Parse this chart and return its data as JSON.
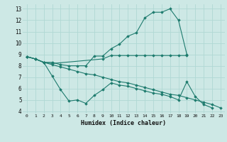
{
  "xlabel": "Humidex (Indice chaleur)",
  "ylabel": "",
  "bg_color": "#cde8e5",
  "grid_color": "#b0d8d4",
  "line_color": "#1e7b6e",
  "xlim": [
    -0.5,
    23.5
  ],
  "ylim": [
    3.8,
    13.4
  ],
  "xticks": [
    0,
    1,
    2,
    3,
    4,
    5,
    6,
    7,
    8,
    9,
    10,
    11,
    12,
    13,
    14,
    15,
    16,
    17,
    18,
    19,
    20,
    21,
    22,
    23
  ],
  "yticks": [
    4,
    5,
    6,
    7,
    8,
    9,
    10,
    11,
    12,
    13
  ],
  "series": [
    {
      "x": [
        0,
        1,
        2,
        3,
        4,
        5,
        6,
        7,
        8,
        9,
        10,
        11,
        12,
        13,
        14,
        15,
        16,
        17,
        18,
        19
      ],
      "y": [
        8.8,
        8.6,
        8.3,
        8.3,
        8.1,
        8.0,
        8.0,
        8.0,
        8.85,
        8.85,
        9.5,
        9.9,
        10.6,
        10.9,
        12.2,
        12.7,
        12.7,
        13.0,
        12.0,
        9.0
      ]
    },
    {
      "x": [
        0,
        1,
        2,
        3,
        9,
        10,
        11,
        12,
        13,
        14,
        15,
        16,
        17,
        18,
        19
      ],
      "y": [
        8.8,
        8.6,
        8.3,
        8.2,
        8.6,
        8.9,
        8.9,
        8.9,
        8.9,
        8.9,
        8.9,
        8.9,
        8.9,
        8.9,
        8.9
      ]
    },
    {
      "x": [
        0,
        1,
        2,
        3,
        4,
        5,
        6,
        7,
        8,
        9,
        10,
        11,
        12,
        13,
        14,
        15,
        16,
        17,
        18,
        19,
        20,
        21,
        22
      ],
      "y": [
        8.8,
        8.6,
        8.3,
        7.1,
        5.9,
        4.9,
        5.0,
        4.7,
        5.4,
        5.9,
        6.5,
        6.3,
        6.2,
        6.0,
        5.8,
        5.6,
        5.5,
        5.3,
        5.0,
        6.6,
        5.3,
        4.6,
        4.3
      ]
    },
    {
      "x": [
        0,
        1,
        2,
        3,
        4,
        5,
        6,
        7,
        8,
        9,
        10,
        11,
        12,
        13,
        14,
        15,
        16,
        17,
        18,
        19,
        20,
        21,
        22,
        23
      ],
      "y": [
        8.8,
        8.6,
        8.3,
        8.1,
        7.9,
        7.7,
        7.5,
        7.3,
        7.2,
        7.0,
        6.8,
        6.6,
        6.5,
        6.3,
        6.1,
        5.9,
        5.7,
        5.5,
        5.4,
        5.2,
        5.0,
        4.8,
        4.6,
        4.3
      ]
    }
  ]
}
